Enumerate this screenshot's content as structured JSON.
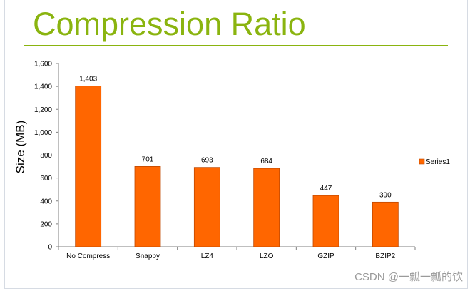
{
  "slide": {
    "title": "Compression Ratio",
    "accent_color": "#8ab40f"
  },
  "watermark": "CSDN @一瓢一瓢的饮",
  "chart_data": {
    "type": "bar",
    "title": "",
    "xlabel": "",
    "ylabel": "Size (MB)",
    "categories": [
      "No Compress",
      "Snappy",
      "LZ4",
      "LZO",
      "GZIP",
      "BZIP2"
    ],
    "series": [
      {
        "name": "Series1",
        "values": [
          1403,
          701,
          693,
          684,
          447,
          390
        ],
        "color": "#ff6600"
      }
    ],
    "data_labels": [
      "1,403",
      "701",
      "693",
      "684",
      "447",
      "390"
    ],
    "ylim": [
      0,
      1600
    ],
    "yticks": [
      0,
      200,
      400,
      600,
      800,
      1000,
      1200,
      1400,
      1600
    ],
    "ytick_labels": [
      "0",
      "200",
      "400",
      "600",
      "800",
      "1,000",
      "1,200",
      "1,400",
      "1,600"
    ],
    "grid": false,
    "legend": "right"
  }
}
